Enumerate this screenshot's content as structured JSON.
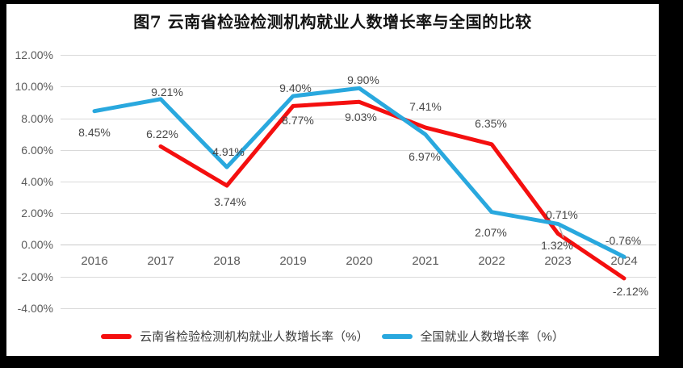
{
  "title": "图7  云南省检验检测机构就业人数增长率与全国的比较",
  "frame_color": "#000000",
  "chart_data": {
    "type": "line",
    "title": "图7  云南省检验检测机构就业人数增长率与全国的比较",
    "categories": [
      "2016",
      "2017",
      "2018",
      "2019",
      "2020",
      "2021",
      "2022",
      "2023",
      "2024"
    ],
    "ylim": [
      -4,
      12
    ],
    "ytick_step": 2,
    "yticks": [
      "12.00%",
      "10.00%",
      "8.00%",
      "6.00%",
      "4.00%",
      "2.00%",
      "0.00%",
      "-2.00%",
      "-4.00%"
    ],
    "grid": true,
    "legend_position": "bottom",
    "series": [
      {
        "name": "云南省检验检测机构就业人数增长率（%）",
        "color": "#f40f0f",
        "values": [
          null,
          6.22,
          3.74,
          8.77,
          9.03,
          7.41,
          6.35,
          0.71,
          -2.12
        ],
        "labels": [
          null,
          "6.22%",
          "3.74%",
          "8.77%",
          "9.03%",
          "7.41%",
          "6.35%",
          "0.71%",
          "-2.12%"
        ],
        "label_offsets": [
          null,
          [
            2,
            -15
          ],
          [
            4,
            20
          ],
          [
            6,
            18
          ],
          [
            2,
            19
          ],
          [
            0,
            -26
          ],
          [
            -1,
            -26
          ],
          [
            5,
            -23
          ],
          [
            8,
            16
          ]
        ]
      },
      {
        "name": "全国就业人数增长率（%）",
        "color": "#29a8de",
        "values": [
          8.45,
          9.21,
          4.91,
          9.4,
          9.9,
          6.97,
          2.07,
          1.32,
          -0.76
        ],
        "labels": [
          "8.45%",
          "9.21%",
          "4.91%",
          "9.40%",
          "9.90%",
          "6.97%",
          "2.07%",
          "1.32%",
          "-0.76%"
        ],
        "label_offsets": [
          [
            0,
            26
          ],
          [
            8,
            -9
          ],
          [
            2,
            -19
          ],
          [
            3,
            -10
          ],
          [
            5,
            -10
          ],
          [
            -1,
            27
          ],
          [
            -1,
            25
          ],
          [
            -1,
            27
          ],
          [
            -1,
            -20
          ]
        ],
        "leader_index": 7
      }
    ]
  },
  "legend": {
    "items": [
      {
        "label": "云南省检验检测机构就业人数增长率（%）",
        "color": "#f40f0f"
      },
      {
        "label": "全国就业人数增长率（%）",
        "color": "#29a8de"
      }
    ]
  }
}
